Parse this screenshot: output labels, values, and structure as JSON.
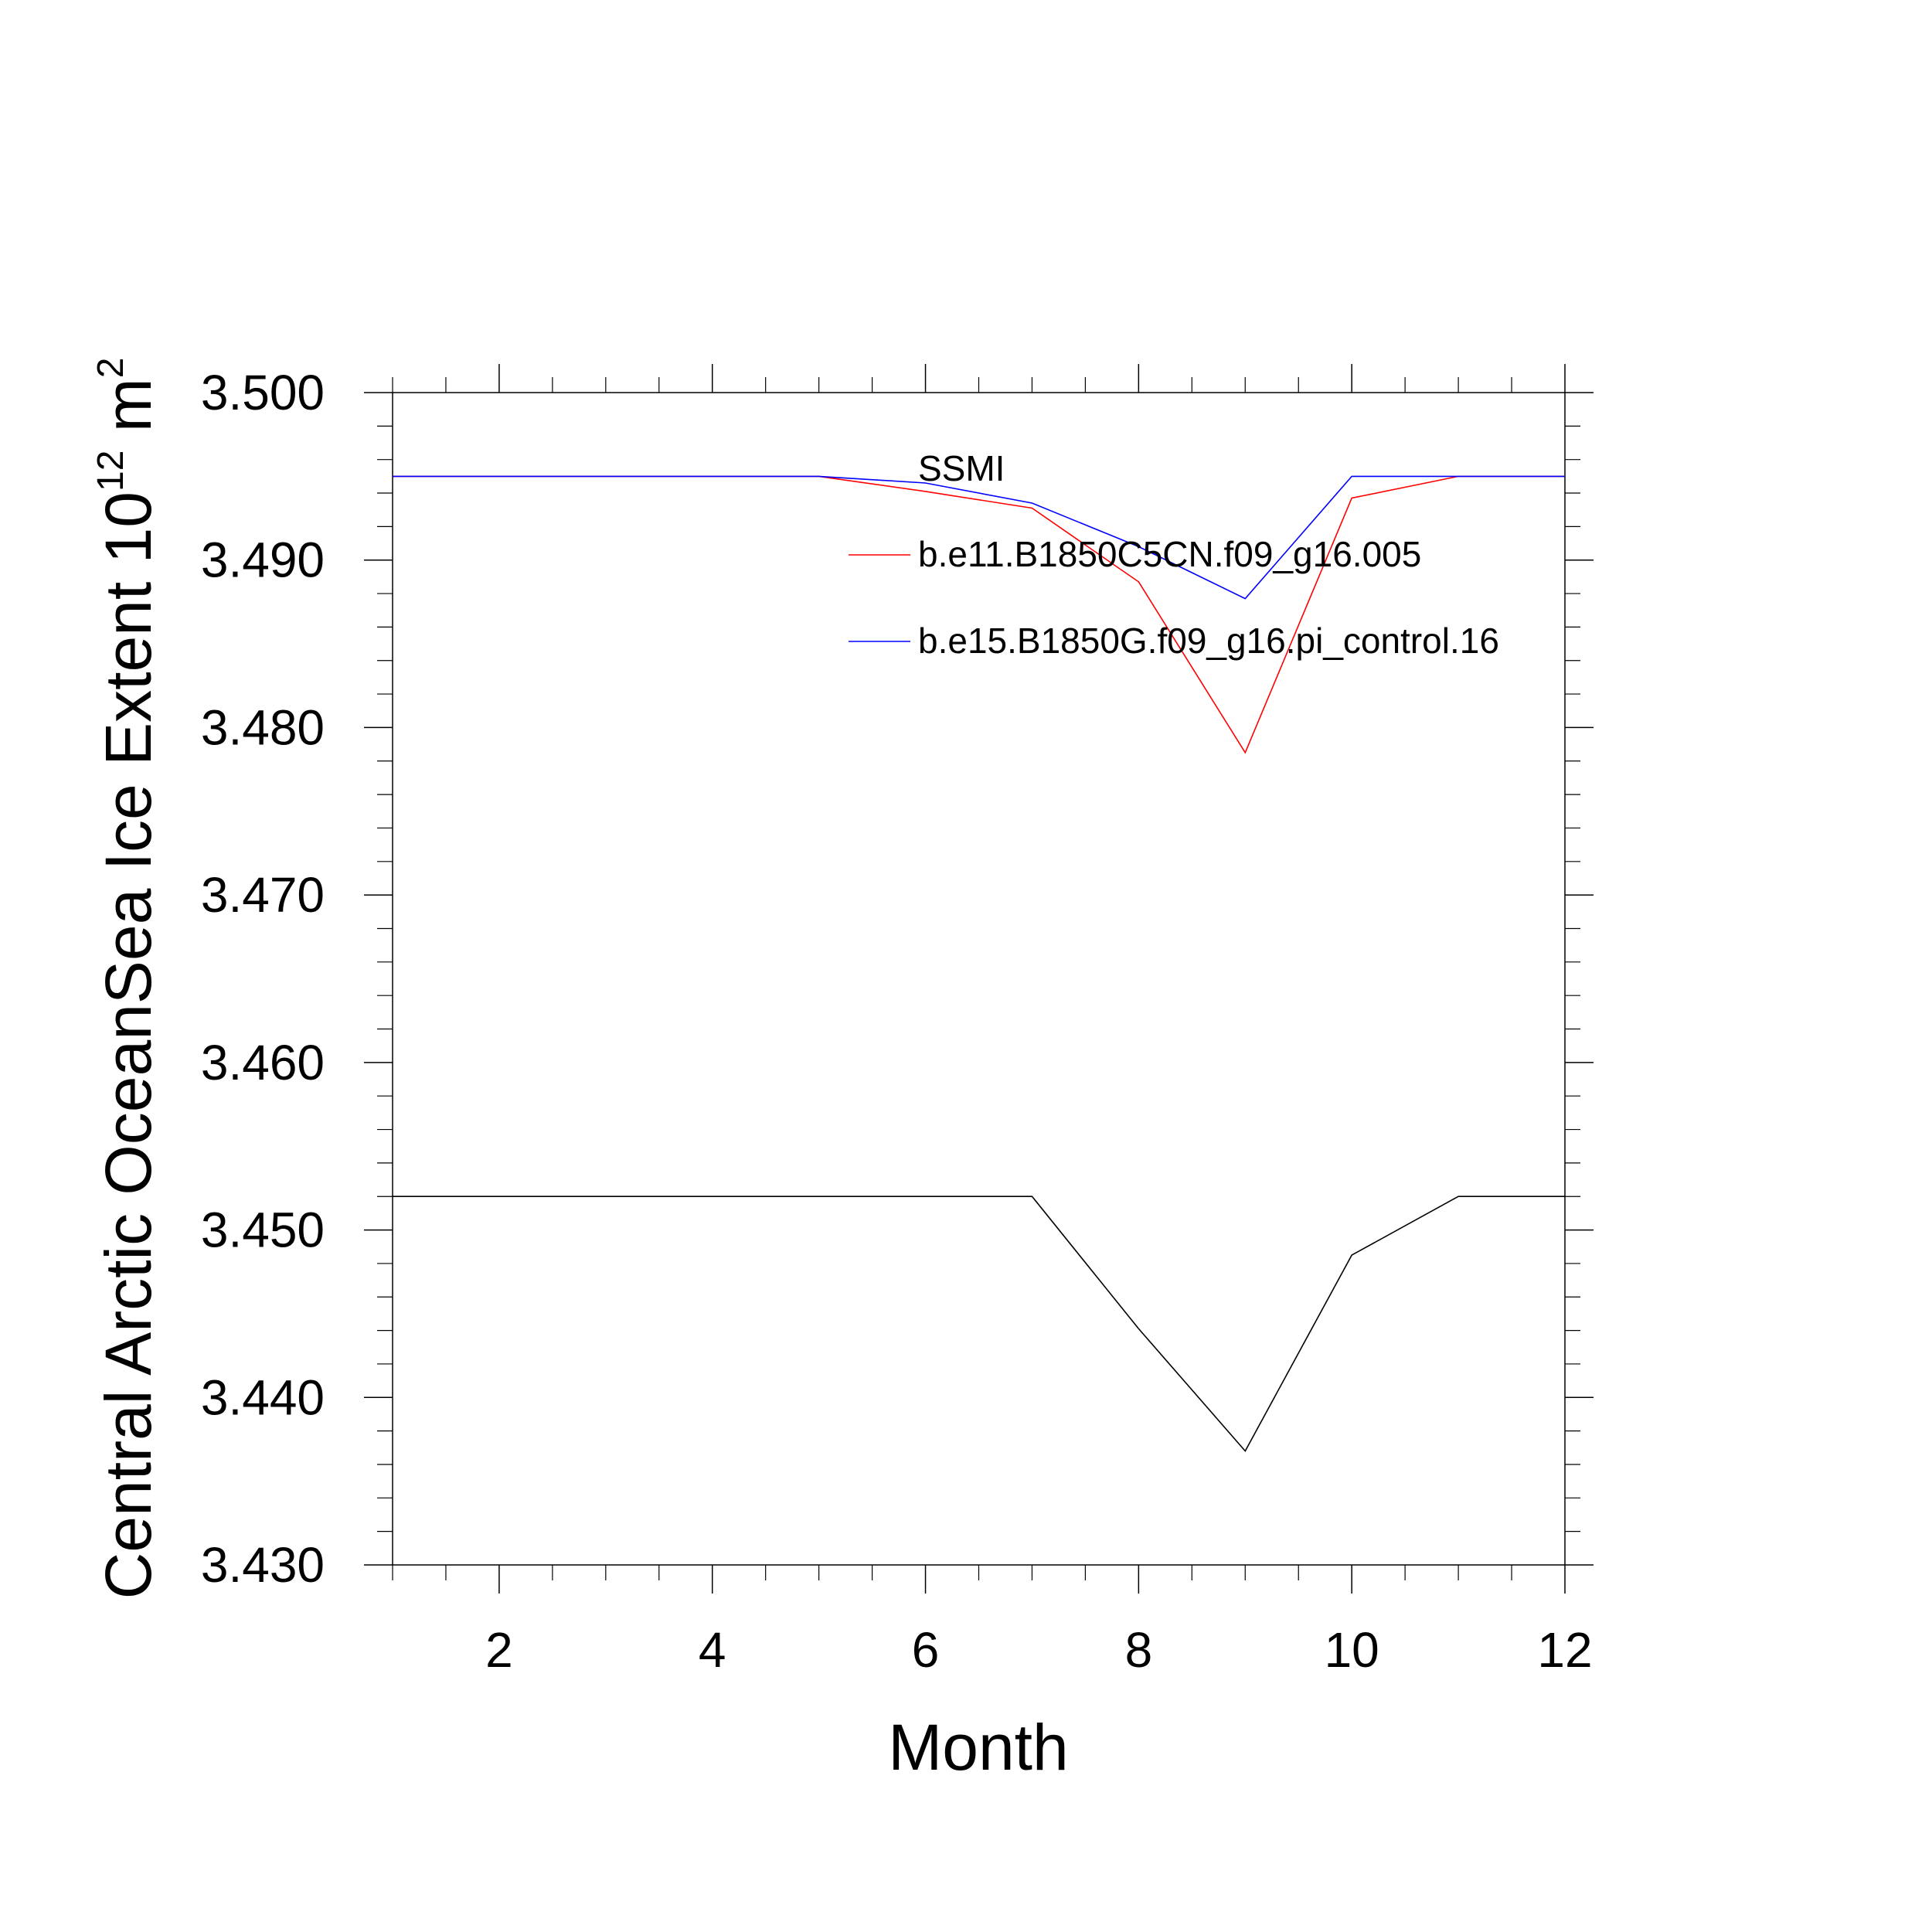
{
  "chart_data": {
    "type": "line",
    "xlabel": "Month",
    "ylabel": {
      "prefix": "Central Arctic OceanSea Ice Extent 10",
      "exponent": "12",
      "unit": " m",
      "unit_exponent": "2"
    },
    "xlim": [
      1,
      12
    ],
    "ylim": [
      3.43,
      3.5
    ],
    "x_ticks": [
      2,
      4,
      6,
      8,
      10,
      12
    ],
    "x_tick_labels": [
      "2",
      "4",
      "6",
      "8",
      "10",
      "12"
    ],
    "y_ticks": [
      3.43,
      3.44,
      3.45,
      3.46,
      3.47,
      3.48,
      3.49,
      3.5
    ],
    "y_tick_labels": [
      "3.430",
      "3.440",
      "3.450",
      "3.460",
      "3.470",
      "3.480",
      "3.490",
      "3.500"
    ],
    "grid": false,
    "legend_position": "top-right",
    "x": [
      1,
      2,
      3,
      4,
      5,
      6,
      7,
      8,
      9,
      10,
      11,
      12
    ],
    "series": [
      {
        "name": "SSMI",
        "color": "#000000",
        "values": [
          3.452,
          3.452,
          3.452,
          3.452,
          3.452,
          3.452,
          3.452,
          3.4441,
          3.4368,
          3.4485,
          3.452,
          3.452
        ]
      },
      {
        "name": "b.e11.B1850C5CN.f09_g16.005",
        "color": "#ff0000",
        "values": [
          3.495,
          3.495,
          3.495,
          3.495,
          3.495,
          3.4941,
          3.4931,
          3.4887,
          3.4785,
          3.4937,
          3.495,
          3.495
        ]
      },
      {
        "name": "b.e15.B1850G.f09_g16.pi_control.16",
        "color": "#0000ff",
        "values": [
          3.495,
          3.495,
          3.495,
          3.495,
          3.495,
          3.4946,
          3.4934,
          3.4908,
          3.4877,
          3.495,
          3.495,
          3.495
        ]
      }
    ]
  }
}
